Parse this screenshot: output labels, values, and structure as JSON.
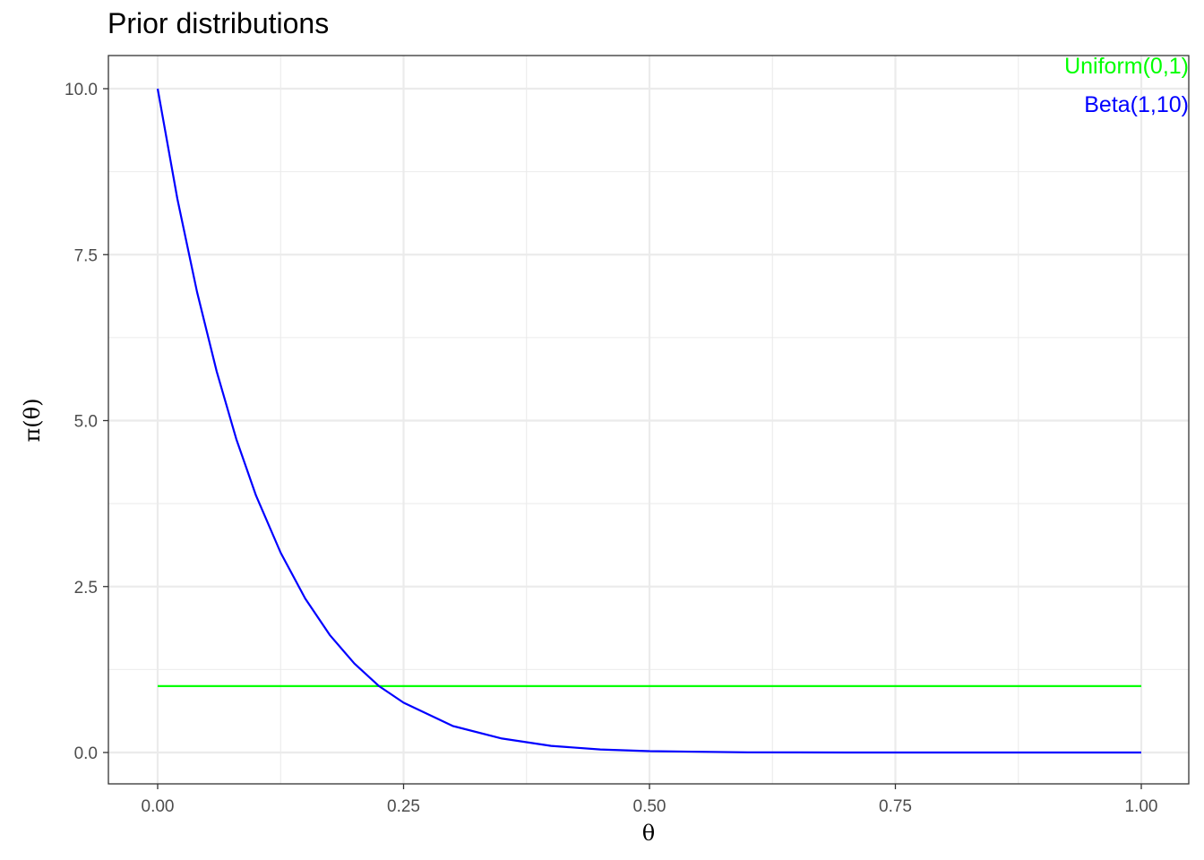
{
  "chart_data": {
    "type": "line",
    "title": "Prior distributions",
    "xlabel": "θ",
    "ylabel": "π(θ)",
    "xlim": [
      0,
      1
    ],
    "ylim": [
      0,
      10
    ],
    "x_ticks": [
      0,
      0.25,
      0.5,
      0.75,
      1
    ],
    "x_tick_labels": [
      "0.00",
      "0.25",
      "0.50",
      "0.75",
      "1.00"
    ],
    "y_ticks": [
      0,
      2.5,
      5,
      7.5,
      10
    ],
    "y_tick_labels": [
      "0.0",
      "2.5",
      "5.0",
      "7.5",
      "10.0"
    ],
    "grid": true,
    "legend_position": "top-right",
    "x": [
      0,
      0.02,
      0.04,
      0.06,
      0.08,
      0.1,
      0.125,
      0.15,
      0.175,
      0.2,
      0.225,
      0.25,
      0.3,
      0.35,
      0.4,
      0.45,
      0.5,
      0.6,
      0.7,
      0.8,
      0.9,
      1
    ],
    "series": [
      {
        "name": "Uniform(0,1)",
        "color": "#00ff00",
        "values": [
          1,
          1,
          1,
          1,
          1,
          1,
          1,
          1,
          1,
          1,
          1,
          1,
          1,
          1,
          1,
          1,
          1,
          1,
          1,
          1,
          1,
          1
        ]
      },
      {
        "name": "Beta(1,10)",
        "color": "#0000ff",
        "values": [
          10,
          8.34,
          6.94,
          5.74,
          4.72,
          3.87,
          3.01,
          2.32,
          1.77,
          1.34,
          1.0,
          0.75,
          0.4,
          0.21,
          0.1,
          0.046,
          0.02,
          0.0026,
          0.0002,
          0.0,
          0.0,
          0.0
        ]
      }
    ]
  }
}
